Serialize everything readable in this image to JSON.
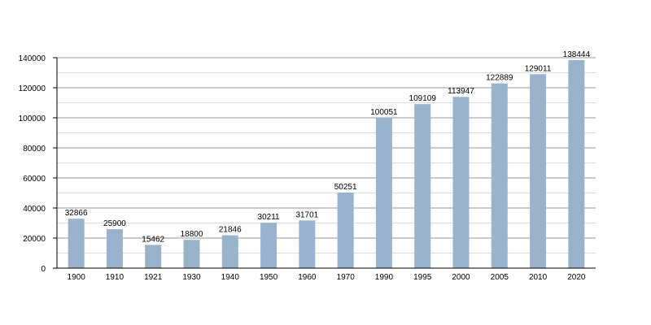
{
  "colors": {
    "bar": "#9ab3cc",
    "gridline": "#999999",
    "minor_gridline": "#dddddd",
    "axis": "#000000",
    "background": "#ffffff"
  },
  "chart_data": {
    "type": "bar",
    "title": "",
    "xlabel": "",
    "ylabel": "",
    "categories": [
      "1900",
      "1910",
      "1921",
      "1930",
      "1940",
      "1950",
      "1960",
      "1970",
      "1990",
      "1995",
      "2000",
      "2005",
      "2010",
      "2020"
    ],
    "values": [
      32866,
      25900,
      15462,
      18800,
      21846,
      30211,
      31701,
      50251,
      100051,
      109109,
      113947,
      122889,
      129011,
      138444
    ],
    "value_labels": [
      "32866",
      "25900",
      "15462",
      "18800",
      "21846",
      "30211",
      "31701",
      "50251",
      "100051",
      "109109",
      "113947",
      "122889",
      "129011",
      "138444"
    ],
    "ylim": [
      0,
      140000
    ],
    "yticks": [
      0,
      20000,
      40000,
      60000,
      80000,
      100000,
      120000,
      140000
    ],
    "ytick_labels": [
      "0",
      "20000",
      "40000",
      "60000",
      "80000",
      "100000",
      "120000",
      "140000"
    ],
    "grid": true,
    "legend": "none"
  }
}
